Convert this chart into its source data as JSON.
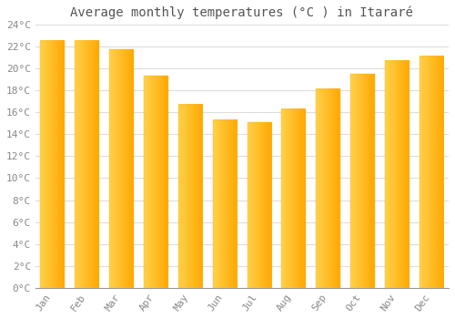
{
  "months": [
    "Jan",
    "Feb",
    "Mar",
    "Apr",
    "May",
    "Jun",
    "Jul",
    "Aug",
    "Sep",
    "Oct",
    "Nov",
    "Dec"
  ],
  "values": [
    22.5,
    22.5,
    21.7,
    19.3,
    16.7,
    15.3,
    15.1,
    16.3,
    18.1,
    19.5,
    20.7,
    21.1
  ],
  "title": "Average monthly temperatures (°C ) in Itararé",
  "bar_color_left": "#FFD04A",
  "bar_color_right": "#FFA800",
  "background_color": "#FFFFFF",
  "grid_color": "#DDDDDD",
  "text_color": "#888888",
  "axis_color": "#999999",
  "ylim_min": 0,
  "ylim_max": 24,
  "ytick_step": 2,
  "title_fontsize": 10,
  "tick_fontsize": 8,
  "font_family": "monospace"
}
